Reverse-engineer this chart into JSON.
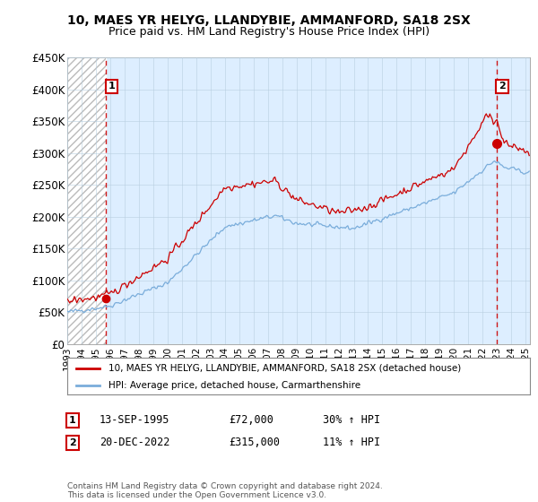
{
  "title1": "10, MAES YR HELYG, LLANDYBIE, AMMANFORD, SA18 2SX",
  "title2": "Price paid vs. HM Land Registry's House Price Index (HPI)",
  "ylabel_ticks": [
    "£0",
    "£50K",
    "£100K",
    "£150K",
    "£200K",
    "£250K",
    "£300K",
    "£350K",
    "£400K",
    "£450K"
  ],
  "ytick_vals": [
    0,
    50000,
    100000,
    150000,
    200000,
    250000,
    300000,
    350000,
    400000,
    450000
  ],
  "ylim": [
    0,
    450000
  ],
  "xlim_start": 1993.0,
  "xlim_end": 2025.3,
  "hatch_region_end": 1995.7,
  "sale1_x": 1995.71,
  "sale1_y": 72000,
  "sale2_x": 2022.97,
  "sale2_y": 315000,
  "legend_line1": "10, MAES YR HELYG, LLANDYBIE, AMMANFORD, SA18 2SX (detached house)",
  "legend_line2": "HPI: Average price, detached house, Carmarthenshire",
  "annotation1_date": "13-SEP-1995",
  "annotation1_price": "£72,000",
  "annotation1_hpi": "30% ↑ HPI",
  "annotation2_date": "20-DEC-2022",
  "annotation2_price": "£315,000",
  "annotation2_hpi": "11% ↑ HPI",
  "footer": "Contains HM Land Registry data © Crown copyright and database right 2024.\nThis data is licensed under the Open Government Licence v3.0.",
  "red_line_color": "#cc0000",
  "blue_line_color": "#7aaddb",
  "grid_color": "#b8cfe0",
  "plot_bg": "#ddeeff"
}
